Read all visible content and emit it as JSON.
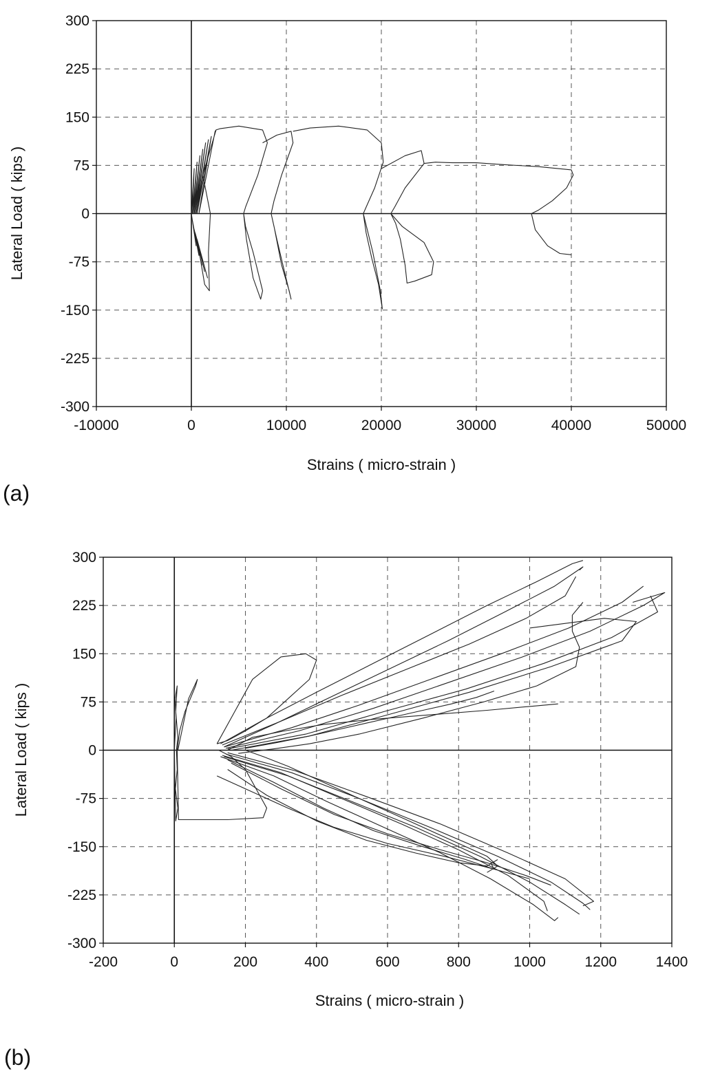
{
  "chart_data": [
    {
      "type": "line",
      "panel_label": "(a)",
      "xlabel": "Strains  ( micro-strain )",
      "ylabel": "Lateral Load  ( kips )",
      "xlim": [
        -10000,
        50000
      ],
      "ylim": [
        -300,
        300
      ],
      "x_ticks": [
        -10000,
        0,
        10000,
        20000,
        30000,
        40000,
        50000
      ],
      "y_ticks": [
        300,
        225,
        150,
        75,
        0,
        -75,
        -150,
        -225,
        -300
      ],
      "grid": true,
      "series": [
        {
          "x": [
            0,
            300,
            100,
            600,
            200,
            900,
            300,
            1200,
            400,
            1500,
            500,
            1800,
            600,
            2100,
            800,
            2500,
            2600,
            1200,
            2000,
            1800,
            1900,
            1400,
            600,
            1700,
            400,
            1400,
            300,
            1100,
            200,
            800,
            100,
            500,
            0
          ],
          "y": [
            0,
            70,
            0,
            80,
            0,
            90,
            0,
            100,
            0,
            110,
            0,
            115,
            0,
            120,
            0,
            128,
            130,
            60,
            0,
            -60,
            -120,
            -110,
            -40,
            -100,
            -30,
            -90,
            -25,
            -80,
            -20,
            -65,
            -10,
            -50,
            0
          ]
        },
        {
          "x": [
            2600,
            3000,
            5000,
            7500,
            8000,
            7000,
            5700,
            5500,
            5700,
            6500,
            7000,
            7500,
            7300,
            6500,
            5800,
            5500
          ],
          "y": [
            130,
            132,
            136,
            130,
            110,
            60,
            10,
            0,
            -20,
            -60,
            -90,
            -120,
            -133,
            -100,
            -40,
            0
          ]
        },
        {
          "x": [
            7500,
            9000,
            10500,
            10700,
            9500,
            8700,
            8400,
            8700,
            9500,
            10300,
            10500,
            9800,
            9000,
            8400
          ],
          "y": [
            110,
            122,
            128,
            110,
            60,
            20,
            0,
            -20,
            -80,
            -120,
            -133,
            -90,
            -40,
            0
          ]
        },
        {
          "x": [
            10700,
            12500,
            15500,
            18500,
            20000,
            20200,
            19300,
            18400,
            18100,
            18400,
            19000,
            19700,
            20100,
            19900,
            19100,
            18100
          ],
          "y": [
            128,
            133,
            136,
            130,
            110,
            80,
            40,
            10,
            0,
            -30,
            -70,
            -110,
            -148,
            -120,
            -60,
            0
          ]
        },
        {
          "x": [
            20000,
            22500,
            24200,
            24500,
            22500,
            21400,
            21000,
            22200,
            24500,
            25500,
            25300,
            23500,
            22700,
            22500,
            22000,
            21500,
            21000
          ],
          "y": [
            70,
            90,
            98,
            78,
            40,
            10,
            0,
            -20,
            -45,
            -75,
            -95,
            -105,
            -108,
            -80,
            -40,
            -15,
            0
          ]
        },
        {
          "x": [
            24500,
            25700,
            27500,
            30000,
            33000,
            36500,
            40000,
            40200,
            39500,
            38000,
            36500,
            35800,
            36200,
            37500,
            38800,
            40000
          ],
          "y": [
            78,
            80,
            79,
            79,
            76,
            73,
            68,
            60,
            40,
            20,
            5,
            0,
            -25,
            -50,
            -62,
            -64
          ]
        }
      ]
    },
    {
      "type": "line",
      "panel_label": "(b)",
      "xlabel": "Strains  ( micro-strain )",
      "ylabel": "Lateral Load  ( kips )",
      "xlim": [
        -200,
        1400
      ],
      "ylim": [
        -300,
        300
      ],
      "x_ticks": [
        -200,
        0,
        200,
        400,
        600,
        800,
        1000,
        1200,
        1400
      ],
      "y_ticks": [
        300,
        225,
        150,
        75,
        0,
        -75,
        -150,
        -225,
        -300
      ],
      "grid": true,
      "series": [
        {
          "x": [
            0,
            5,
            2,
            8,
            4,
            10,
            6,
            8,
            3,
            10,
            4,
            2,
            0
          ],
          "y": [
            0,
            50,
            80,
            100,
            60,
            20,
            0,
            -30,
            -60,
            -90,
            -110,
            -60,
            0
          ]
        },
        {
          "x": [
            10,
            40,
            65,
            60,
            30,
            15,
            8,
            12,
            60,
            150,
            250,
            260,
            230,
            200,
            160,
            125
          ],
          "y": [
            0,
            80,
            110,
            100,
            60,
            30,
            0,
            -108,
            -108,
            -108,
            -105,
            -90,
            -60,
            -30,
            -10,
            0
          ]
        },
        {
          "x": [
            120,
            170,
            220,
            300,
            370,
            400,
            380,
            320,
            260,
            200,
            150,
            120
          ],
          "y": [
            10,
            60,
            110,
            145,
            150,
            140,
            110,
            80,
            50,
            30,
            15,
            10
          ]
        },
        {
          "x": [
            130,
            260,
            400,
            560,
            720,
            880,
            1020,
            1120,
            1150
          ],
          "y": [
            10,
            50,
            90,
            135,
            180,
            225,
            262,
            290,
            295
          ]
        },
        {
          "x": [
            140,
            280,
            430,
            600,
            770,
            930,
            1070,
            1150,
            1140
          ],
          "y": [
            5,
            40,
            80,
            125,
            170,
            215,
            255,
            285,
            280
          ]
        },
        {
          "x": [
            135,
            300,
            470,
            650,
            830,
            990,
            1100,
            1130
          ],
          "y": [
            8,
            45,
            85,
            125,
            165,
            205,
            240,
            270
          ]
        },
        {
          "x": [
            140,
            330,
            520,
            720,
            920,
            1110,
            1260,
            1320
          ],
          "y": [
            5,
            35,
            70,
            110,
            150,
            190,
            230,
            255
          ]
        },
        {
          "x": [
            145,
            350,
            560,
            770,
            980,
            1170,
            1320,
            1380,
            1290
          ],
          "y": [
            3,
            30,
            65,
            105,
            145,
            185,
            225,
            245,
            230
          ]
        },
        {
          "x": [
            150,
            370,
            590,
            820,
            1040,
            1230,
            1360,
            1340
          ],
          "y": [
            2,
            25,
            60,
            95,
            135,
            175,
            215,
            240
          ]
        },
        {
          "x": [
            160,
            380,
            600,
            830,
            1060,
            1260,
            1300,
            1210,
            1000
          ],
          "y": [
            0,
            22,
            55,
            90,
            130,
            170,
            200,
            205,
            190
          ]
        },
        {
          "x": [
            1150,
            1120,
            1120,
            1140,
            1130,
            1020,
            870,
            700,
            520,
            380,
            280,
            220,
            180
          ],
          "y": [
            230,
            210,
            185,
            160,
            130,
            100,
            75,
            50,
            25,
            10,
            2,
            -2,
            -5
          ]
        },
        {
          "x": [
            150,
            220,
            310,
            420,
            560,
            720,
            880,
            1000,
            1080
          ],
          "y": [
            0,
            20,
            30,
            40,
            48,
            55,
            62,
            68,
            72
          ]
        },
        {
          "x": [
            200,
            290,
            380,
            460,
            540,
            620,
            700,
            780,
            850,
            900
          ],
          "y": [
            3,
            12,
            22,
            32,
            42,
            52,
            62,
            72,
            82,
            92
          ]
        },
        {
          "x": [
            130,
            280,
            430,
            590,
            750,
            890,
            1010,
            1070,
            1080
          ],
          "y": [
            -10,
            -40,
            -80,
            -120,
            -160,
            -200,
            -240,
            -265,
            -260
          ]
        },
        {
          "x": [
            135,
            300,
            470,
            640,
            800,
            940,
            1040,
            1050
          ],
          "y": [
            -8,
            -35,
            -75,
            -115,
            -155,
            -195,
            -235,
            -250
          ]
        },
        {
          "x": [
            140,
            320,
            500,
            680,
            860,
            1000,
            1100,
            1140
          ],
          "y": [
            -10,
            -40,
            -80,
            -120,
            -165,
            -205,
            -240,
            -255
          ]
        },
        {
          "x": [
            145,
            330,
            520,
            720,
            910,
            1060,
            1150,
            1170
          ],
          "y": [
            -6,
            -35,
            -75,
            -120,
            -165,
            -205,
            -238,
            -248
          ]
        },
        {
          "x": [
            150,
            340,
            540,
            750,
            940,
            1100,
            1180,
            1150
          ],
          "y": [
            -4,
            -32,
            -72,
            -115,
            -160,
            -200,
            -235,
            -242
          ]
        },
        {
          "x": [
            160,
            300,
            450,
            600,
            750,
            880,
            990,
            1060
          ],
          "y": [
            -20,
            -60,
            -100,
            -130,
            -155,
            -175,
            -195,
            -210
          ]
        },
        {
          "x": [
            150,
            280,
            420,
            560,
            700,
            820,
            900,
            890
          ],
          "y": [
            -15,
            -50,
            -90,
            -125,
            -150,
            -170,
            -185,
            -175
          ]
        },
        {
          "x": [
            150,
            260,
            400,
            540,
            680,
            800,
            880,
            910
          ],
          "y": [
            -30,
            -70,
            -110,
            -140,
            -160,
            -175,
            -180,
            -170
          ]
        },
        {
          "x": [
            200,
            250,
            320,
            420,
            540,
            660,
            780,
            880,
            910,
            880
          ],
          "y": [
            0,
            -10,
            -25,
            -50,
            -80,
            -110,
            -140,
            -165,
            -180,
            -190
          ]
        },
        {
          "x": [
            120,
            200,
            320,
            450,
            600,
            760,
            900,
            1000
          ],
          "y": [
            -40,
            -60,
            -90,
            -120,
            -145,
            -165,
            -185,
            -200
          ]
        }
      ]
    }
  ]
}
